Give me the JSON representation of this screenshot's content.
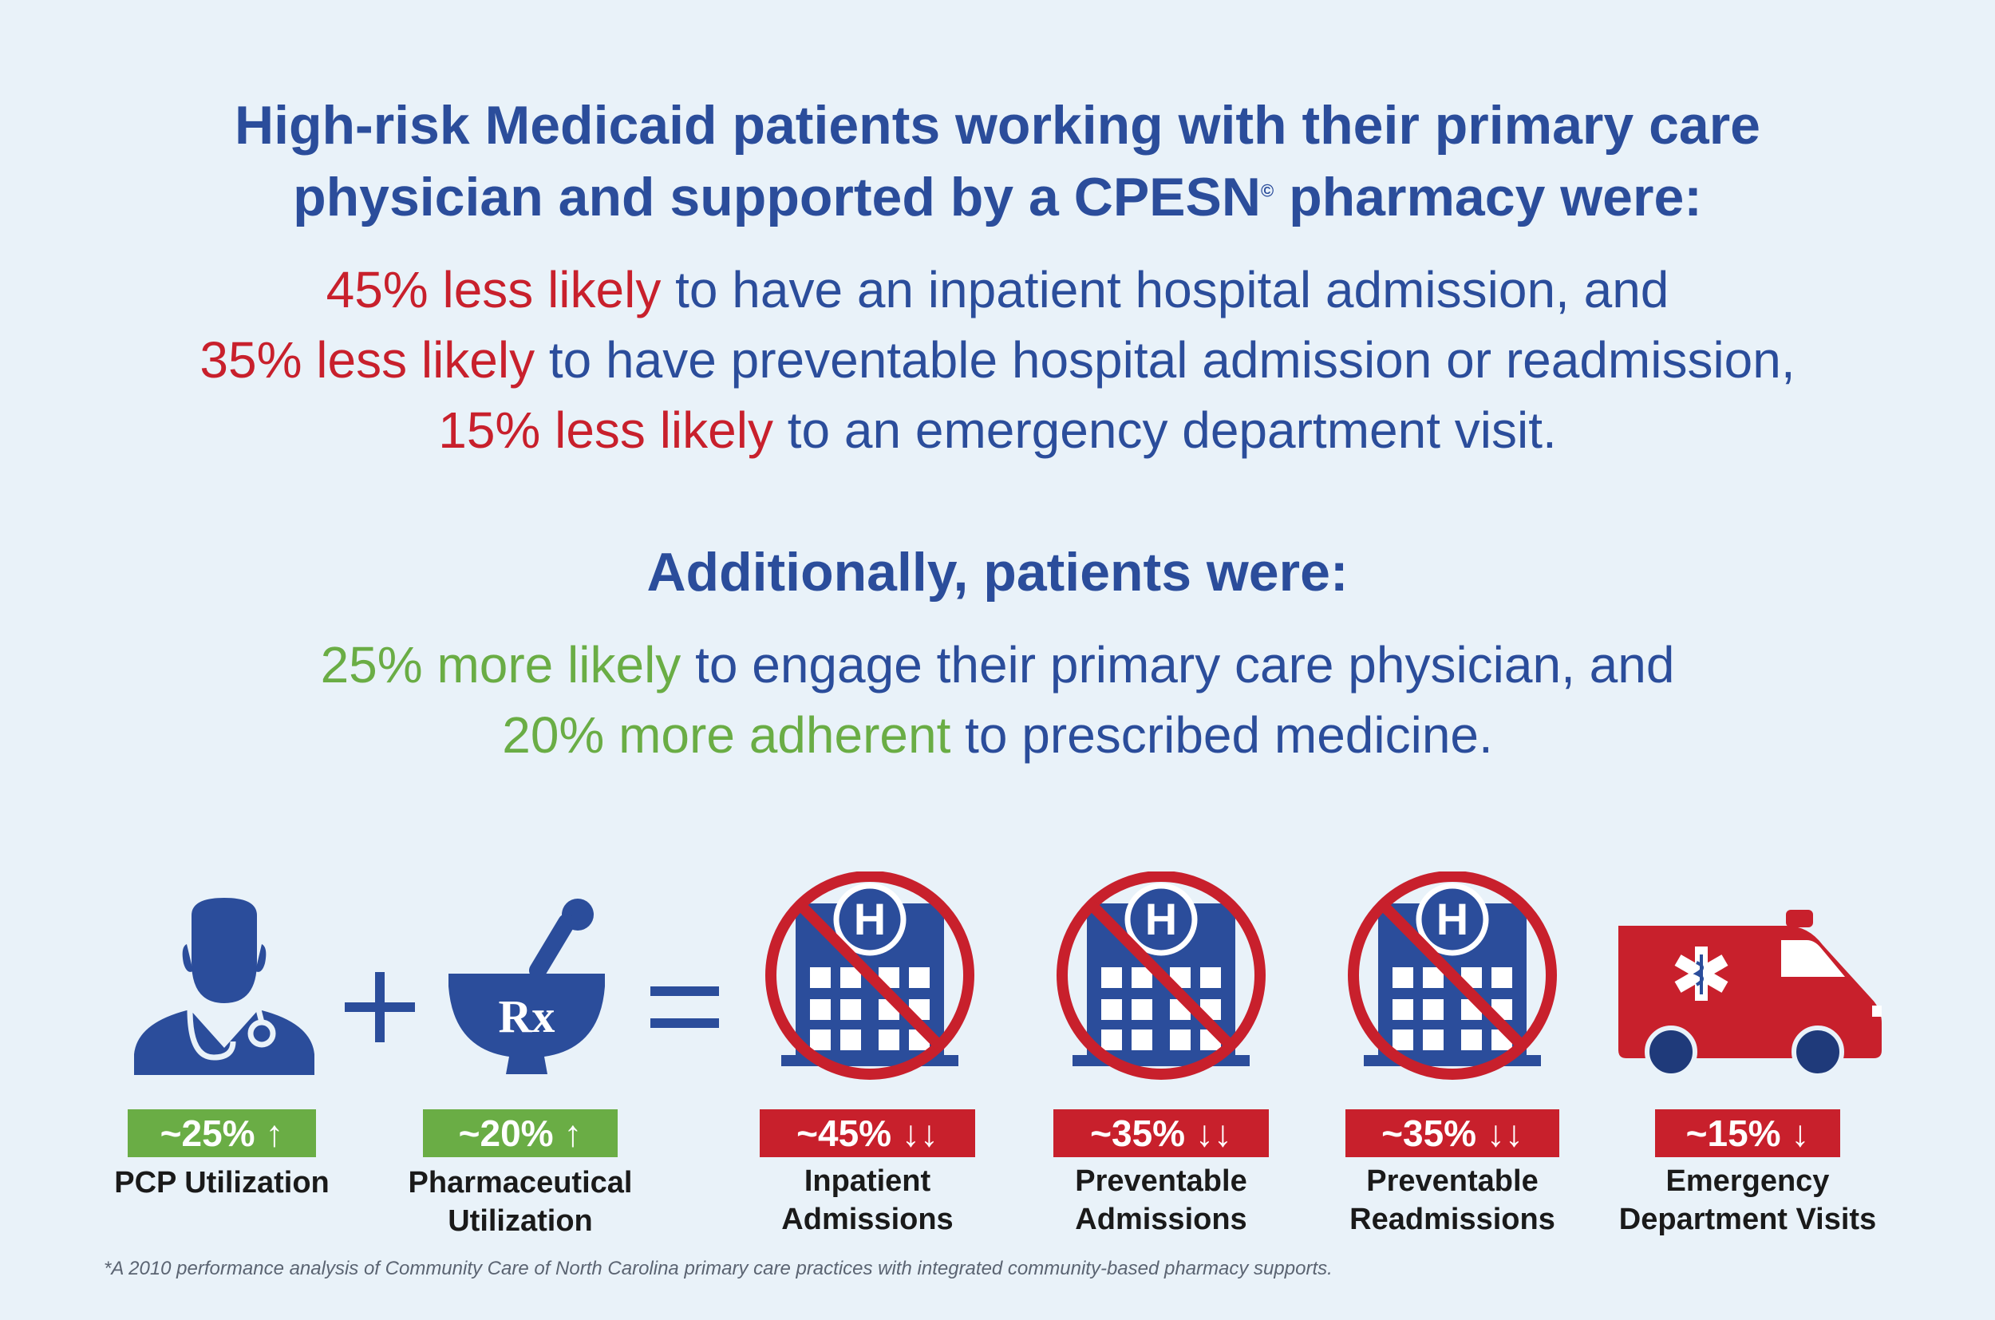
{
  "heading": {
    "line1": "High-risk Medicaid patients working with their primary care",
    "line2a": "physician and supported by a CPESN",
    "mark": "©",
    "line2b": " pharmacy were:"
  },
  "stats": [
    {
      "highlight": "45% less likely",
      "rest": " to have an inpatient hospital admission, and"
    },
    {
      "highlight": "35% less likely",
      "rest": " to have preventable hospital admission or readmission,"
    },
    {
      "highlight": "15% less likely",
      "rest": " to an emergency department visit."
    }
  ],
  "additionally": "Additionally, patients were:",
  "more_stats": [
    {
      "highlight": "25% more likely",
      "rest": " to engage their primary care physician, and"
    },
    {
      "highlight": "20% more adherent",
      "rest": " to prescribed medicine."
    }
  ],
  "metrics": [
    {
      "badge": "~25% ↑",
      "label1": "PCP Utilization",
      "label2": "",
      "color": "#6aad45"
    },
    {
      "badge": "~20% ↑",
      "label1": "Pharmaceutical",
      "label2": "Utilization",
      "color": "#6aad45"
    },
    {
      "badge": "~45% ↓↓",
      "label1": "Inpatient",
      "label2": "Admissions",
      "color": "#c8202c"
    },
    {
      "badge": "~35% ↓↓",
      "label1": "Preventable",
      "label2": "Admissions",
      "color": "#c8202c"
    },
    {
      "badge": "~35% ↓↓",
      "label1": "Preventable",
      "label2": "Readmissions",
      "color": "#c8202c"
    },
    {
      "badge": "~15% ↓",
      "label1": "Emergency",
      "label2": "Department Visits",
      "color": "#c8202c"
    }
  ],
  "operators": {
    "plus": "+",
    "equals": "="
  },
  "icons": {
    "doctor": "doctor-icon",
    "mortar": "mortar-pestle-icon",
    "rx": "Rx",
    "hospital": "hospital-no-icon",
    "hospital_letter": "H",
    "ambulance": "ambulance-icon"
  },
  "colors": {
    "blue": "#2b4d9b",
    "red": "#c8202c",
    "green": "#6aad45",
    "background": "#e9f2f9"
  },
  "footnote": "*A 2010 performance analysis of Community Care of North Carolina primary care practices with integrated community-based pharmacy supports."
}
